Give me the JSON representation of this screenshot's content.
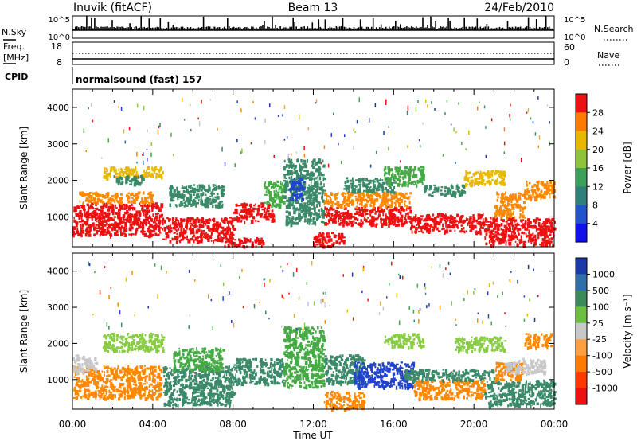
{
  "header": {
    "station": "Inuvik (fitACF)",
    "beam": "Beam 13",
    "date": "24/Feb/2010"
  },
  "top_panels": {
    "nsky_label": "N.Sky",
    "nsearch_label": "N.Search",
    "nsky_ticks": [
      "10^5",
      "10^0"
    ],
    "nsearch_ticks": [
      "10^5",
      "10^0"
    ],
    "freq_label_line1": "Freq.",
    "freq_label_line2": "[MHz]",
    "freq_ticks": [
      "18",
      "8"
    ],
    "nave_label": "Nave",
    "nave_ticks": [
      "60",
      "0"
    ],
    "cpid_label": "CPID",
    "cpid_text": "normalsound (fast) 157"
  },
  "colors": {
    "red": "#ee1111",
    "orange": "#ff8800",
    "yellow": "#e8b800",
    "lightgreen": "#88cc44",
    "green": "#44aa44",
    "teal": "#3a8a6a",
    "blue": "#2244cc",
    "darkblue": "#1a3aaa",
    "grey": "#c8c8c8"
  },
  "chart_data": [
    {
      "type": "heatmap",
      "title": "",
      "xlabel": "",
      "ylabel": "Slant Range [km]",
      "xlim": [
        0,
        24
      ],
      "ylim": [
        180,
        4500
      ],
      "x_tick_labels": [],
      "y_ticks": [
        1000,
        2000,
        3000,
        4000
      ],
      "y_tick_labels": [
        "1000",
        "2000",
        "3000",
        "4000"
      ],
      "colorbar": {
        "label": "Power [dB]",
        "tick_labels": [
          "28",
          "24",
          "20",
          "16",
          "12",
          "8",
          "4"
        ],
        "colors": [
          "#ee1111",
          "#ff7a00",
          "#e8b800",
          "#8fc43a",
          "#3aa05a",
          "#2f7f7a",
          "#2255cc",
          "#1111ee"
        ]
      },
      "regions": [
        {
          "t0": 0.0,
          "t1": 4.4,
          "r0": 500,
          "r1": 1400,
          "c": "red"
        },
        {
          "t0": 0.3,
          "t1": 4.0,
          "r0": 1400,
          "r1": 1700,
          "c": "orange"
        },
        {
          "t0": 1.5,
          "t1": 4.5,
          "r0": 2100,
          "r1": 2400,
          "c": "yellow"
        },
        {
          "t0": 2.0,
          "t1": 3.5,
          "r0": 1900,
          "r1": 2150,
          "c": "teal"
        },
        {
          "t0": 4.8,
          "t1": 7.5,
          "r0": 1300,
          "r1": 1900,
          "c": "teal"
        },
        {
          "t0": 4.4,
          "t1": 8.0,
          "r0": 350,
          "r1": 1000,
          "c": "red"
        },
        {
          "t0": 7.5,
          "t1": 9.5,
          "r0": 200,
          "r1": 450,
          "c": "red"
        },
        {
          "t0": 8.0,
          "t1": 10.0,
          "r0": 900,
          "r1": 1400,
          "c": "red"
        },
        {
          "t0": 9.5,
          "t1": 10.5,
          "r0": 1300,
          "r1": 2000,
          "c": "green"
        },
        {
          "t0": 10.5,
          "t1": 12.5,
          "r0": 800,
          "r1": 2600,
          "c": "teal"
        },
        {
          "t0": 10.8,
          "t1": 11.5,
          "r0": 1500,
          "r1": 2100,
          "c": "blue"
        },
        {
          "t0": 12.5,
          "t1": 16.8,
          "r0": 800,
          "r1": 1300,
          "c": "red"
        },
        {
          "t0": 12.5,
          "t1": 16.8,
          "r0": 1300,
          "r1": 1700,
          "c": "orange"
        },
        {
          "t0": 13.5,
          "t1": 16.0,
          "r0": 1700,
          "r1": 2100,
          "c": "teal"
        },
        {
          "t0": 15.5,
          "t1": 17.5,
          "r0": 1900,
          "r1": 2400,
          "c": "green"
        },
        {
          "t0": 12.0,
          "t1": 13.5,
          "r0": 200,
          "r1": 600,
          "c": "red"
        },
        {
          "t0": 16.8,
          "t1": 20.5,
          "r0": 600,
          "r1": 1100,
          "c": "red"
        },
        {
          "t0": 17.5,
          "t1": 19.5,
          "r0": 1600,
          "r1": 1900,
          "c": "teal"
        },
        {
          "t0": 20.5,
          "t1": 24.0,
          "r0": 250,
          "r1": 1000,
          "c": "red"
        },
        {
          "t0": 21.0,
          "t1": 22.5,
          "r0": 1000,
          "r1": 1700,
          "c": "orange"
        },
        {
          "t0": 22.5,
          "t1": 24.0,
          "r0": 1500,
          "r1": 2000,
          "c": "orange"
        },
        {
          "t0": 19.5,
          "t1": 21.5,
          "r0": 1900,
          "r1": 2300,
          "c": "yellow"
        }
      ]
    },
    {
      "type": "heatmap",
      "title": "",
      "xlabel": "Time UT",
      "ylabel": "Slant Range [km]",
      "xlim": [
        0,
        24
      ],
      "ylim": [
        180,
        4500
      ],
      "x_ticks": [
        0,
        4,
        8,
        12,
        16,
        20,
        24
      ],
      "x_tick_labels": [
        "00:00",
        "04:00",
        "08:00",
        "12:00",
        "16:00",
        "20:00",
        "00:00"
      ],
      "y_ticks": [
        1000,
        2000,
        3000,
        4000
      ],
      "y_tick_labels": [
        "1000",
        "2000",
        "3000",
        "4000"
      ],
      "colorbar": {
        "label": "Velocity [m s⁻¹]",
        "tick_labels": [
          "1000",
          "500",
          "100",
          "25",
          "-25",
          "-100",
          "-500",
          "-1000"
        ],
        "colors": [
          "#1a3aaa",
          "#2f6fa8",
          "#3a8a5a",
          "#6cc040",
          "#c8c8c8",
          "#ffa040",
          "#ff7a00",
          "#ff3a00",
          "#ee1111"
        ]
      },
      "regions": [
        {
          "t0": 0.0,
          "t1": 4.4,
          "r0": 500,
          "r1": 1400,
          "c": "orange"
        },
        {
          "t0": 0.0,
          "t1": 1.2,
          "r0": 1200,
          "r1": 1700,
          "c": "grey"
        },
        {
          "t0": 1.5,
          "t1": 4.5,
          "r0": 1800,
          "r1": 2300,
          "c": "lightgreen"
        },
        {
          "t0": 4.5,
          "t1": 8.0,
          "r0": 300,
          "r1": 1400,
          "c": "teal"
        },
        {
          "t0": 5.0,
          "t1": 7.5,
          "r0": 1300,
          "r1": 1900,
          "c": "green"
        },
        {
          "t0": 8.0,
          "t1": 10.5,
          "r0": 900,
          "r1": 1600,
          "c": "teal"
        },
        {
          "t0": 10.5,
          "t1": 12.5,
          "r0": 800,
          "r1": 2500,
          "c": "green"
        },
        {
          "t0": 12.5,
          "t1": 14.5,
          "r0": 900,
          "r1": 1700,
          "c": "teal"
        },
        {
          "t0": 14.0,
          "t1": 17.0,
          "r0": 800,
          "r1": 1500,
          "c": "blue"
        },
        {
          "t0": 15.5,
          "t1": 17.5,
          "r0": 1900,
          "r1": 2300,
          "c": "lightgreen"
        },
        {
          "t0": 12.5,
          "t1": 14.5,
          "r0": 200,
          "r1": 700,
          "c": "orange"
        },
        {
          "t0": 17.0,
          "t1": 20.5,
          "r0": 500,
          "r1": 1000,
          "c": "orange"
        },
        {
          "t0": 16.5,
          "t1": 21.0,
          "r0": 1000,
          "r1": 1300,
          "c": "teal"
        },
        {
          "t0": 20.5,
          "t1": 24.0,
          "r0": 300,
          "r1": 1000,
          "c": "teal"
        },
        {
          "t0": 21.0,
          "t1": 22.5,
          "r0": 1000,
          "r1": 1500,
          "c": "orange"
        },
        {
          "t0": 21.5,
          "t1": 23.5,
          "r0": 1200,
          "r1": 1600,
          "c": "grey"
        },
        {
          "t0": 22.5,
          "t1": 23.8,
          "r0": 1900,
          "r1": 2300,
          "c": "orange"
        },
        {
          "t0": 19.0,
          "t1": 21.5,
          "r0": 1800,
          "r1": 2200,
          "c": "lightgreen"
        }
      ]
    }
  ]
}
